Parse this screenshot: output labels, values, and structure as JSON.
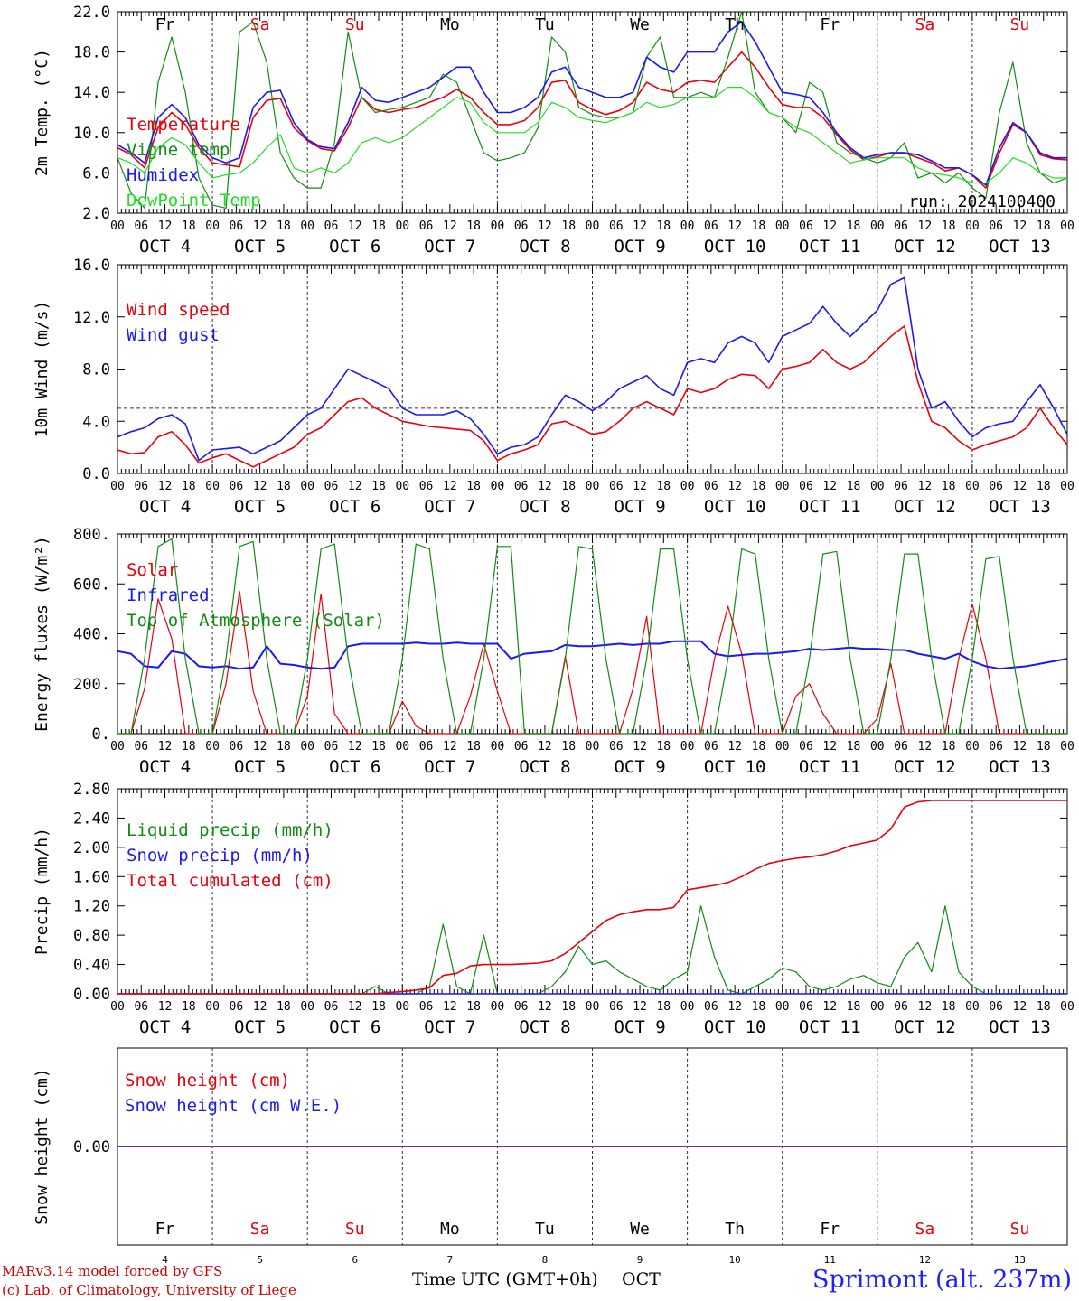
{
  "colors": {
    "red": "#e8000b",
    "green": "#138a13",
    "blue": "#1a1aee",
    "lightgreen": "#22dd22",
    "purple": "#7a2a9a",
    "weekend": "#e8000b",
    "weekday": "#000000"
  },
  "days": [
    {
      "abbr": "Fr",
      "date": "OCT  4",
      "num": "4",
      "weekend": false
    },
    {
      "abbr": "Sa",
      "date": "OCT  5",
      "num": "5",
      "weekend": true
    },
    {
      "abbr": "Su",
      "date": "OCT  6",
      "num": "6",
      "weekend": true
    },
    {
      "abbr": "Mo",
      "date": "OCT  7",
      "num": "7",
      "weekend": false
    },
    {
      "abbr": "Tu",
      "date": "OCT  8",
      "num": "8",
      "weekend": false
    },
    {
      "abbr": "We",
      "date": "OCT  9",
      "num": "9",
      "weekend": false
    },
    {
      "abbr": "Th",
      "date": "OCT 10",
      "num": "10",
      "weekend": false
    },
    {
      "abbr": "Fr",
      "date": "OCT 11",
      "num": "11",
      "weekend": false
    },
    {
      "abbr": "Sa",
      "date": "OCT 12",
      "num": "12",
      "weekend": true
    },
    {
      "abbr": "Su",
      "date": "OCT 13",
      "num": "13",
      "weekend": true
    }
  ],
  "hour_labels": [
    "00",
    "06",
    "12",
    "18"
  ],
  "end_hour_label": "00",
  "footer": {
    "model": "MARv3.14 model forced by GFS",
    "credit": "(c) Lab. of Climatology, University of Liege",
    "xaxis": "Time UTC (GMT+0h)",
    "month": "OCT",
    "station": "Sprimont (alt. 237m)"
  },
  "chart_data": [
    {
      "type": "line",
      "ylabel": "2m Temp. (°C)",
      "ylim": [
        2,
        22
      ],
      "yticks": [
        "2.0",
        "6.0",
        "10.0",
        "14.0",
        "18.0",
        "22.0"
      ],
      "annotation": "run: 2024100400",
      "x_unit": "hours since 2024-10-04 00 UTC (3-hourly)",
      "series": [
        {
          "name": "Temperature",
          "color": "red",
          "values": [
            8.5,
            7.8,
            6.5,
            10.5,
            12.0,
            10.8,
            8.5,
            7.0,
            6.8,
            6.6,
            11.5,
            13.2,
            13.4,
            10.5,
            9.2,
            8.4,
            8.2,
            10.5,
            13.5,
            12.3,
            12.0,
            12.3,
            12.5,
            13.0,
            13.5,
            14.3,
            13.5,
            12.0,
            10.8,
            10.8,
            11.2,
            12.5,
            15.0,
            15.2,
            13.0,
            12.3,
            11.8,
            12.2,
            13.0,
            15.0,
            14.3,
            14.0,
            15.0,
            15.2,
            15.0,
            16.5,
            18.0,
            16.5,
            14.5,
            12.8,
            12.5,
            12.5,
            11.5,
            9.8,
            8.3,
            7.3,
            7.6,
            8.0,
            8.0,
            7.5,
            7.0,
            6.2,
            6.5,
            5.8,
            4.5,
            8.0,
            10.8,
            10.0,
            7.8,
            7.4,
            7.3
          ]
        },
        {
          "name": "Vigne temp",
          "color": "green",
          "values": [
            7.5,
            4.0,
            2.5,
            15.0,
            19.5,
            14.0,
            5.5,
            2.8,
            2.5,
            20.0,
            21.0,
            17.0,
            8.0,
            5.5,
            4.5,
            4.5,
            9.0,
            20.0,
            13.5,
            12.0,
            12.3,
            12.5,
            13.0,
            13.5,
            15.8,
            15.0,
            11.5,
            8.0,
            7.2,
            7.5,
            8.0,
            10.5,
            19.5,
            18.0,
            12.5,
            11.8,
            11.5,
            11.5,
            12.0,
            17.5,
            19.5,
            13.5,
            13.5,
            14.0,
            13.5,
            17.5,
            22.0,
            14.0,
            12.0,
            11.5,
            10.0,
            15.0,
            14.0,
            9.0,
            8.0,
            7.5,
            7.0,
            7.5,
            9.0,
            5.5,
            6.0,
            5.0,
            6.0,
            4.5,
            3.5,
            12.0,
            17.0,
            9.0,
            6.0,
            5.0,
            5.5
          ]
        },
        {
          "name": "Humidex",
          "color": "blue",
          "values": [
            8.8,
            8.0,
            7.0,
            11.5,
            12.8,
            11.5,
            8.8,
            7.5,
            7.0,
            7.5,
            12.5,
            14.0,
            14.2,
            11.0,
            9.3,
            8.6,
            8.4,
            11.0,
            14.5,
            13.2,
            13.0,
            13.5,
            14.0,
            14.5,
            15.5,
            16.5,
            16.5,
            14.0,
            12.0,
            12.0,
            12.5,
            13.5,
            16.0,
            16.5,
            14.5,
            14.0,
            13.5,
            13.5,
            14.0,
            17.5,
            16.5,
            16.0,
            18.0,
            18.0,
            18.0,
            20.0,
            21.0,
            19.0,
            16.5,
            14.0,
            13.8,
            13.5,
            12.0,
            10.0,
            8.5,
            7.5,
            7.8,
            8.0,
            8.0,
            7.8,
            7.2,
            6.5,
            6.5,
            5.8,
            4.8,
            8.5,
            11.0,
            10.0,
            8.0,
            7.5,
            7.5
          ]
        },
        {
          "name": "DewPoint Temp",
          "color": "lightgreen",
          "values": [
            7.5,
            7.0,
            6.0,
            8.5,
            9.5,
            8.8,
            7.0,
            5.5,
            5.8,
            6.0,
            7.0,
            8.5,
            9.8,
            6.5,
            6.0,
            6.5,
            6.0,
            7.0,
            9.0,
            9.5,
            9.0,
            9.5,
            10.5,
            11.5,
            12.5,
            13.5,
            13.0,
            11.0,
            10.0,
            10.0,
            10.0,
            11.0,
            13.0,
            12.5,
            11.5,
            11.2,
            11.0,
            11.5,
            12.0,
            13.0,
            12.5,
            12.8,
            13.5,
            13.5,
            13.5,
            14.5,
            14.5,
            13.5,
            12.0,
            11.5,
            10.5,
            10.0,
            9.0,
            8.0,
            7.0,
            7.3,
            7.5,
            7.5,
            7.5,
            6.5,
            6.0,
            5.8,
            5.5,
            5.0,
            5.0,
            6.0,
            7.5,
            7.0,
            6.0,
            5.5,
            5.5
          ]
        }
      ]
    },
    {
      "type": "line",
      "ylabel": "10m Wind (m/s)",
      "ylim": [
        0,
        16
      ],
      "yticks": [
        "0.0",
        "4.0",
        "8.0",
        "12.0",
        "16.0"
      ],
      "threshold": 5,
      "series": [
        {
          "name": "Wind speed",
          "color": "red",
          "values": [
            1.8,
            1.5,
            1.6,
            2.8,
            3.2,
            2.2,
            0.8,
            1.2,
            1.5,
            1.0,
            0.5,
            1.0,
            1.5,
            2.0,
            3.0,
            3.5,
            4.5,
            5.5,
            5.8,
            5.0,
            4.5,
            4.0,
            3.8,
            3.6,
            3.5,
            3.4,
            3.3,
            2.5,
            1.0,
            1.5,
            1.8,
            2.2,
            3.8,
            4.0,
            3.5,
            3.0,
            3.2,
            4.0,
            5.0,
            5.5,
            5.0,
            4.5,
            6.5,
            6.2,
            6.5,
            7.2,
            7.6,
            7.5,
            6.5,
            8.0,
            8.2,
            8.5,
            9.5,
            8.5,
            8.0,
            8.5,
            9.5,
            10.5,
            11.3,
            7.0,
            4.0,
            3.5,
            2.5,
            1.8,
            2.2,
            2.5,
            2.8,
            3.5,
            5.0,
            3.5,
            2.2
          ]
        },
        {
          "name": "Wind gust",
          "color": "blue",
          "values": [
            2.8,
            3.2,
            3.5,
            4.2,
            4.5,
            3.8,
            1.0,
            1.8,
            1.9,
            2.0,
            1.5,
            2.0,
            2.5,
            3.5,
            4.5,
            5.0,
            6.5,
            8.0,
            7.5,
            7.0,
            6.5,
            5.0,
            4.5,
            4.5,
            4.5,
            4.8,
            4.2,
            3.0,
            1.5,
            2.0,
            2.2,
            2.8,
            4.5,
            6.0,
            5.5,
            4.8,
            5.5,
            6.5,
            7.0,
            7.5,
            6.5,
            6.0,
            8.5,
            8.8,
            8.5,
            10.0,
            10.5,
            10.0,
            8.5,
            10.5,
            11.0,
            11.5,
            12.8,
            11.5,
            10.5,
            11.5,
            12.5,
            14.5,
            15.0,
            8.0,
            5.0,
            5.5,
            4.0,
            2.8,
            3.5,
            3.8,
            4.0,
            5.5,
            6.8,
            5.0,
            3.0
          ]
        }
      ]
    },
    {
      "type": "line",
      "ylabel": "Energy fluxes (W/m²)",
      "ylim": [
        0,
        800
      ],
      "yticks": [
        "0.",
        "200.",
        "400.",
        "600.",
        "800."
      ],
      "series": [
        {
          "name": "Solar",
          "color": "red",
          "values": [
            0,
            0,
            180,
            540,
            380,
            0,
            0,
            0,
            200,
            570,
            170,
            0,
            0,
            0,
            150,
            560,
            80,
            0,
            0,
            0,
            0,
            130,
            30,
            0,
            0,
            0,
            150,
            360,
            170,
            0,
            0,
            0,
            0,
            310,
            0,
            0,
            0,
            0,
            180,
            470,
            0,
            0,
            0,
            0,
            300,
            510,
            320,
            0,
            0,
            0,
            150,
            200,
            80,
            0,
            0,
            0,
            60,
            280,
            0,
            0,
            0,
            0,
            300,
            520,
            300,
            0,
            0,
            0,
            0,
            0,
            0
          ]
        },
        {
          "name": "Infrared",
          "color": "blue",
          "values": [
            330,
            320,
            270,
            265,
            330,
            320,
            270,
            265,
            270,
            260,
            265,
            350,
            280,
            275,
            265,
            260,
            265,
            350,
            360,
            360,
            360,
            360,
            365,
            360,
            360,
            365,
            360,
            360,
            360,
            300,
            320,
            325,
            330,
            355,
            350,
            350,
            355,
            360,
            355,
            360,
            360,
            370,
            370,
            370,
            320,
            310,
            315,
            320,
            320,
            325,
            330,
            340,
            335,
            340,
            345,
            340,
            340,
            335,
            335,
            320,
            310,
            300,
            320,
            290,
            270,
            260,
            265,
            270,
            280,
            290,
            300
          ]
        },
        {
          "name": "Top of Atmosphere (Solar)",
          "color": "green",
          "values": [
            0,
            0,
            300,
            750,
            780,
            300,
            0,
            0,
            300,
            750,
            770,
            300,
            0,
            0,
            300,
            740,
            760,
            300,
            0,
            0,
            0,
            300,
            760,
            740,
            300,
            0,
            0,
            300,
            750,
            750,
            0,
            0,
            0,
            300,
            750,
            740,
            300,
            0,
            0,
            300,
            740,
            740,
            300,
            0,
            0,
            300,
            740,
            720,
            300,
            0,
            0,
            300,
            720,
            730,
            300,
            0,
            0,
            300,
            720,
            720,
            300,
            0,
            0,
            300,
            700,
            710,
            300,
            0,
            0,
            0,
            0
          ]
        }
      ]
    },
    {
      "type": "line",
      "ylabel": "Precip (mm/h)",
      "ylim": [
        0,
        2.8
      ],
      "yticks": [
        "0.00",
        "0.40",
        "0.80",
        "1.20",
        "1.60",
        "2.00",
        "2.40",
        "2.80"
      ],
      "series": [
        {
          "name": "Liquid precip (mm/h)",
          "color": "green",
          "values": [
            0,
            0,
            0,
            0,
            0,
            0,
            0,
            0,
            0,
            0,
            0,
            0,
            0,
            0,
            0,
            0,
            0,
            0,
            0,
            0.1,
            0,
            0,
            0,
            0.1,
            0.95,
            0.1,
            0,
            0.8,
            0,
            0,
            0,
            0,
            0.1,
            0.3,
            0.65,
            0.4,
            0.45,
            0.3,
            0.2,
            0.1,
            0.05,
            0.2,
            0.3,
            1.2,
            0.5,
            0.05,
            0,
            0.1,
            0.2,
            0.35,
            0.3,
            0.1,
            0.05,
            0.1,
            0.2,
            0.25,
            0.15,
            0.1,
            0.5,
            0.7,
            0.3,
            1.2,
            0.3,
            0.1,
            0,
            0,
            0,
            0,
            0,
            0,
            0
          ]
        },
        {
          "name": "Snow precip (mm/h)",
          "color": "blue",
          "values": [
            0,
            0,
            0,
            0,
            0,
            0,
            0,
            0,
            0,
            0,
            0,
            0,
            0,
            0,
            0,
            0,
            0,
            0,
            0,
            0,
            0,
            0,
            0,
            0,
            0,
            0,
            0,
            0,
            0,
            0,
            0,
            0,
            0,
            0,
            0,
            0,
            0,
            0,
            0,
            0,
            0,
            0,
            0,
            0,
            0,
            0,
            0,
            0,
            0,
            0,
            0,
            0,
            0,
            0,
            0,
            0,
            0,
            0,
            0,
            0,
            0,
            0,
            0,
            0,
            0,
            0,
            0,
            0,
            0,
            0,
            0
          ]
        },
        {
          "name": "Total cumulated (cm)",
          "color": "red",
          "values": [
            0,
            0,
            0,
            0,
            0,
            0,
            0,
            0,
            0,
            0,
            0,
            0,
            0,
            0,
            0,
            0,
            0,
            0,
            0,
            0,
            0.02,
            0.03,
            0.05,
            0.08,
            0.25,
            0.28,
            0.38,
            0.4,
            0.4,
            0.4,
            0.41,
            0.42,
            0.45,
            0.55,
            0.7,
            0.85,
            1.0,
            1.08,
            1.12,
            1.15,
            1.15,
            1.18,
            1.42,
            1.45,
            1.48,
            1.52,
            1.6,
            1.7,
            1.78,
            1.82,
            1.85,
            1.87,
            1.9,
            1.95,
            2.02,
            2.06,
            2.1,
            2.25,
            2.55,
            2.62,
            2.64,
            2.64,
            2.64,
            2.64,
            2.64,
            2.64,
            2.64,
            2.64,
            2.64,
            2.64,
            2.64
          ]
        }
      ]
    },
    {
      "type": "line",
      "ylabel": "Snow height (cm)",
      "ylim": [
        -0.3,
        0.3
      ],
      "yticks": [
        "0.00"
      ],
      "series": [
        {
          "name": "Snow height (cm)",
          "color": "red",
          "values": [
            0,
            0
          ]
        },
        {
          "name": "Snow height (cm W.E.)",
          "color": "blue",
          "values": [
            0,
            0
          ]
        }
      ]
    }
  ]
}
